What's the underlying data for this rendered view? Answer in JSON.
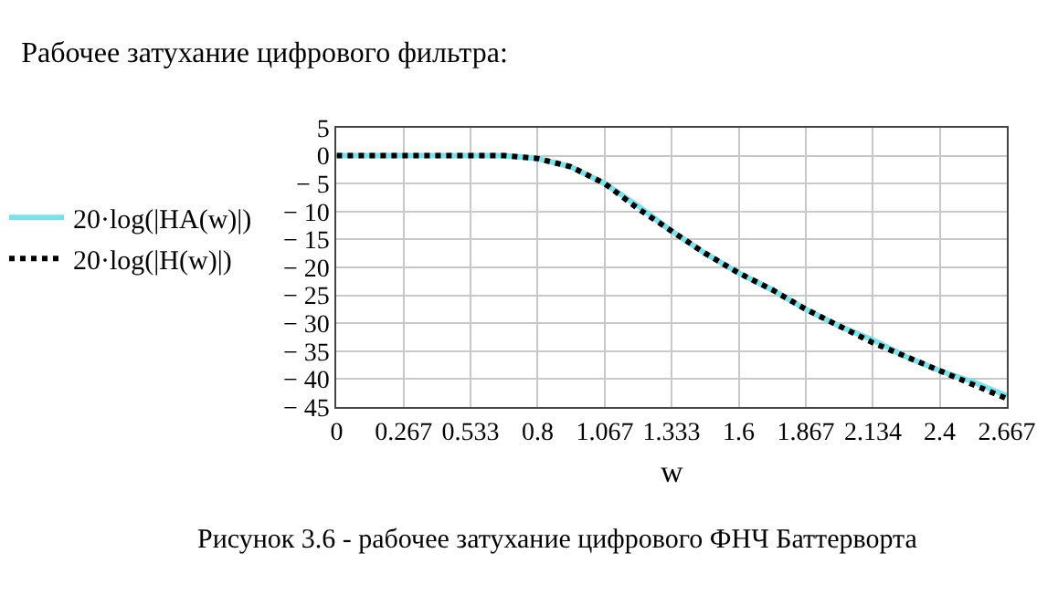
{
  "chart_data": {
    "type": "line",
    "title": "Рабочее затухание цифрового фильтра:",
    "xlabel": "w",
    "annotations": [
      "Рисунок 3.6 - рабочее затухание цифрового ФНЧ Баттерворта"
    ],
    "x": [
      0,
      0.267,
      0.533,
      0.667,
      0.8,
      0.933,
      1.067,
      1.2,
      1.333,
      1.467,
      1.6,
      1.733,
      1.867,
      2.0,
      2.134,
      2.267,
      2.4,
      2.533,
      2.667
    ],
    "series": [
      {
        "name": "20·log(|HA(w)|)",
        "color": "#7fe0e8",
        "line_style": "solid",
        "values": [
          0,
          0,
          0,
          0,
          -0.5,
          -2,
          -5,
          -9,
          -13.5,
          -17.5,
          -21,
          -24,
          -27.5,
          -30.5,
          -33,
          -36,
          -38.5,
          -40.5,
          -43
        ]
      },
      {
        "name": "20·log(|H(w)|)",
        "color": "#000000",
        "line_style": "dotted",
        "values": [
          0,
          0,
          0,
          0,
          -0.5,
          -2,
          -5,
          -9.5,
          -13.5,
          -17.5,
          -21,
          -24,
          -27.5,
          -30.5,
          -33.5,
          -36,
          -38.5,
          -41,
          -43.5
        ]
      }
    ],
    "xlim": [
      0,
      2.667
    ],
    "xticks": [
      0,
      0.267,
      0.533,
      0.8,
      1.067,
      1.333,
      1.6,
      1.867,
      2.134,
      2.4,
      2.667
    ],
    "ylim": [
      -45,
      5
    ],
    "yticks": [
      5,
      0,
      {
        "value": -5,
        "label": "− 5"
      },
      {
        "value": -10,
        "label": "− 10"
      },
      {
        "value": -15,
        "label": "− 15"
      },
      {
        "value": -20,
        "label": "− 20"
      },
      {
        "value": -25,
        "label": "− 25"
      },
      {
        "value": -30,
        "label": "− 30"
      },
      {
        "value": -35,
        "label": "− 35"
      },
      {
        "value": -40,
        "label": "− 40"
      },
      {
        "value": -45,
        "label": "− 45"
      }
    ],
    "grid": true,
    "legend": "left"
  }
}
